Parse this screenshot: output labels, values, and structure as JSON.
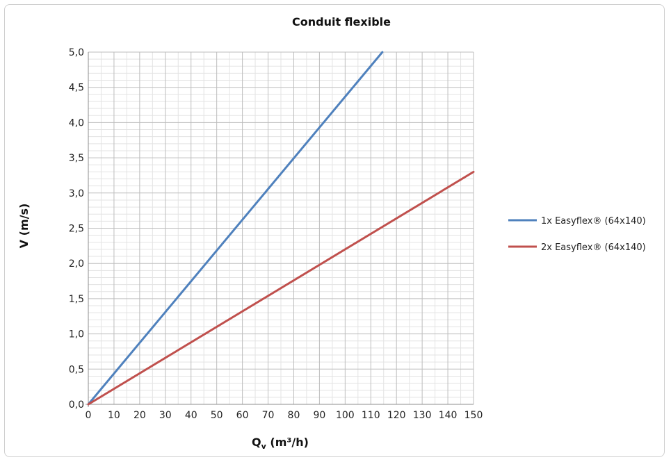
{
  "chart_data": {
    "type": "line",
    "title": "Conduit flexible",
    "xlabel_main": "Q",
    "xlabel_sub": "v",
    "xlabel_unit": " (m³/h)",
    "ylabel": "V (m/s)",
    "xlim": [
      0,
      150
    ],
    "ylim": [
      0,
      5
    ],
    "x_ticks": [
      "0",
      "10",
      "20",
      "30",
      "40",
      "50",
      "60",
      "70",
      "80",
      "90",
      "100",
      "110",
      "120",
      "130",
      "140",
      "150"
    ],
    "y_ticks": [
      "0,0",
      "0,5",
      "1,0",
      "1,5",
      "2,0",
      "2,5",
      "3,0",
      "3,5",
      "4,0",
      "4,5",
      "5,0"
    ],
    "grid": true,
    "legend_position": "right",
    "series": [
      {
        "name": "1x Easyflex® (64x140)",
        "color": "#4f81bd",
        "x": [
          0,
          114.5
        ],
        "y": [
          0,
          5.0
        ]
      },
      {
        "name": "2x Easyflex® (64x140)",
        "color": "#c0504d",
        "x": [
          0,
          150
        ],
        "y": [
          0,
          3.3
        ]
      }
    ]
  }
}
